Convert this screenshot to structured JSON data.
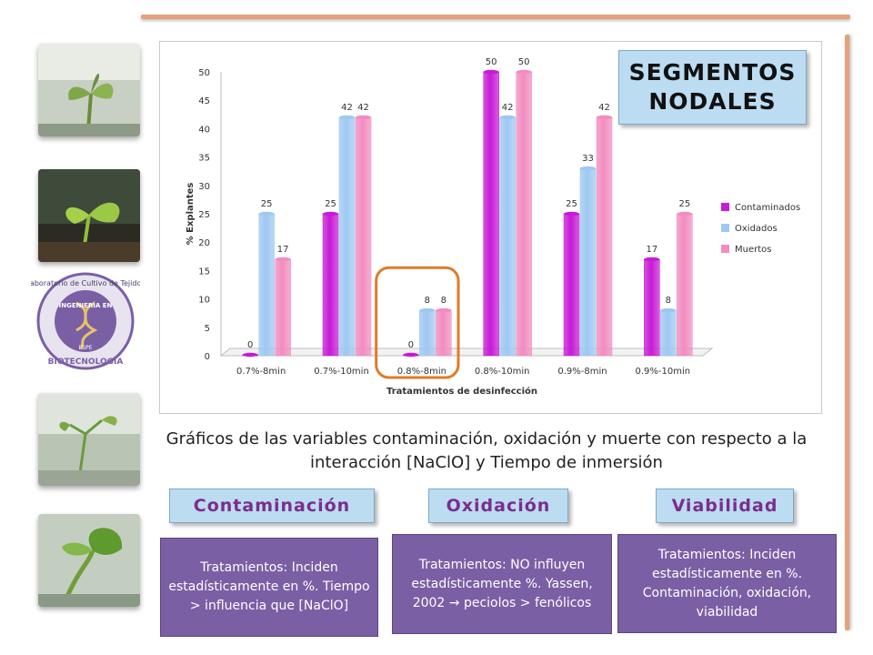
{
  "title_badge": "SEGMENTOS\nNODALES",
  "caption": "Gráficos de  las variables contaminación, oxidación y muerte con respecto a la interacción [NaClO] y Tiempo de inmersión",
  "logo": {
    "top_text": "Laboratorio de Cultivo de Tejidos",
    "middle_text": "INGENIERÍA EN",
    "bottom_text": "BIOTECNOLOGÍA",
    "small_text": "ESPE"
  },
  "headers": [
    {
      "label": "Contaminación"
    },
    {
      "label": "Oxidación"
    },
    {
      "label": "Viabilidad"
    }
  ],
  "notes": [
    {
      "text": "Tratamientos: Inciden estadísticamente en %. Tiempo > influencia que [NaClO]"
    },
    {
      "text": "Tratamientos: NO influyen estadísticamente %. Yassen, 2002 → peciolos > fenólicos"
    },
    {
      "text": "Tratamientos: Inciden estadísticamente en %. Contaminación, oxidación, viabilidad"
    }
  ],
  "colors": {
    "contaminados": "#c71ad6",
    "oxidados": "#9ec8f2",
    "muertos": "#f28cc0",
    "highlight": "#e07b2a",
    "accent_line": "#e7a07a"
  },
  "chart_data": {
    "type": "bar",
    "categories": [
      "0.7%-8min",
      "0.7%-10min",
      "0.8%-8min",
      "0.8%-10min",
      "0.9%-8min",
      "0.9%-10min"
    ],
    "series": [
      {
        "name": "Contaminados",
        "values": [
          0,
          25,
          0,
          50,
          25,
          17
        ]
      },
      {
        "name": "Oxidados",
        "values": [
          25,
          42,
          8,
          42,
          33,
          8
        ]
      },
      {
        "name": "Muertos",
        "values": [
          17,
          42,
          8,
          50,
          42,
          25
        ]
      }
    ],
    "data_labels": [
      [
        "0",
        "25",
        "0",
        "50",
        "25",
        "17"
      ],
      [
        "25",
        "42",
        "8",
        "42",
        "33",
        "8"
      ],
      [
        "17",
        "42",
        "8",
        "50",
        "42",
        "25"
      ]
    ],
    "xlabel": "Tratamientos de desinfección",
    "ylabel": "% Explantes",
    "ylim": [
      0,
      50
    ],
    "yticks": [
      0,
      5,
      10,
      15,
      20,
      25,
      30,
      35,
      40,
      45,
      50
    ],
    "legend": "right",
    "highlighted_category": "0.8%-8min",
    "grid": false
  }
}
